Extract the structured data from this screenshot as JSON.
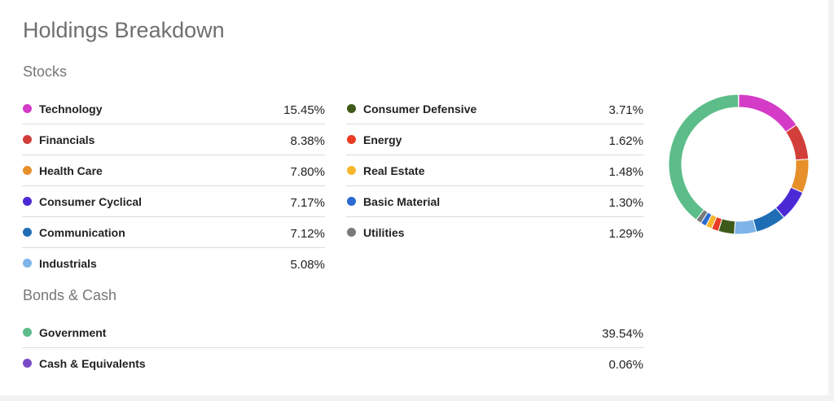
{
  "header": {
    "title": "Holdings Breakdown"
  },
  "sections": {
    "stocks_label": "Stocks",
    "bonds_label": "Bonds & Cash"
  },
  "stocks": {
    "left": [
      {
        "name": "Technology",
        "pct": "15.45%",
        "color": "#d43bc6"
      },
      {
        "name": "Financials",
        "pct": "8.38%",
        "color": "#d23f3b"
      },
      {
        "name": "Health Care",
        "pct": "7.80%",
        "color": "#e7902b"
      },
      {
        "name": "Consumer Cyclical",
        "pct": "7.17%",
        "color": "#4b2ad6"
      },
      {
        "name": "Communication",
        "pct": "7.12%",
        "color": "#1f6eb5"
      },
      {
        "name": "Industrials",
        "pct": "5.08%",
        "color": "#7db4ea"
      }
    ],
    "right": [
      {
        "name": "Consumer Defensive",
        "pct": "3.71%",
        "color": "#3d5a1a"
      },
      {
        "name": "Energy",
        "pct": "1.62%",
        "color": "#ea3b24"
      },
      {
        "name": "Real Estate",
        "pct": "1.48%",
        "color": "#f6b62d"
      },
      {
        "name": "Basic Material",
        "pct": "1.30%",
        "color": "#2a6ad1"
      },
      {
        "name": "Utilities",
        "pct": "1.29%",
        "color": "#7a7a7a"
      }
    ]
  },
  "bonds": [
    {
      "name": "Government",
      "pct": "39.54%",
      "color": "#5cbd8a"
    },
    {
      "name": "Cash & Equivalents",
      "pct": "0.06%",
      "color": "#7a4bc9"
    }
  ],
  "chart_data": {
    "type": "pie",
    "categories": [
      "Technology",
      "Financials",
      "Health Care",
      "Consumer Cyclical",
      "Communication",
      "Industrials",
      "Consumer Defensive",
      "Energy",
      "Real Estate",
      "Basic Material",
      "Utilities",
      "Government",
      "Cash & Equivalents"
    ],
    "values": [
      15.45,
      8.38,
      7.8,
      7.17,
      7.12,
      5.08,
      3.71,
      1.62,
      1.48,
      1.3,
      1.29,
      39.54,
      0.06
    ],
    "colors": [
      "#d43bc6",
      "#d23f3b",
      "#e7902b",
      "#4b2ad6",
      "#1f6eb5",
      "#7db4ea",
      "#3d5a1a",
      "#ea3b24",
      "#f6b62d",
      "#2a6ad1",
      "#7a7a7a",
      "#5cbd8a",
      "#7a4bc9"
    ],
    "donut": true
  }
}
